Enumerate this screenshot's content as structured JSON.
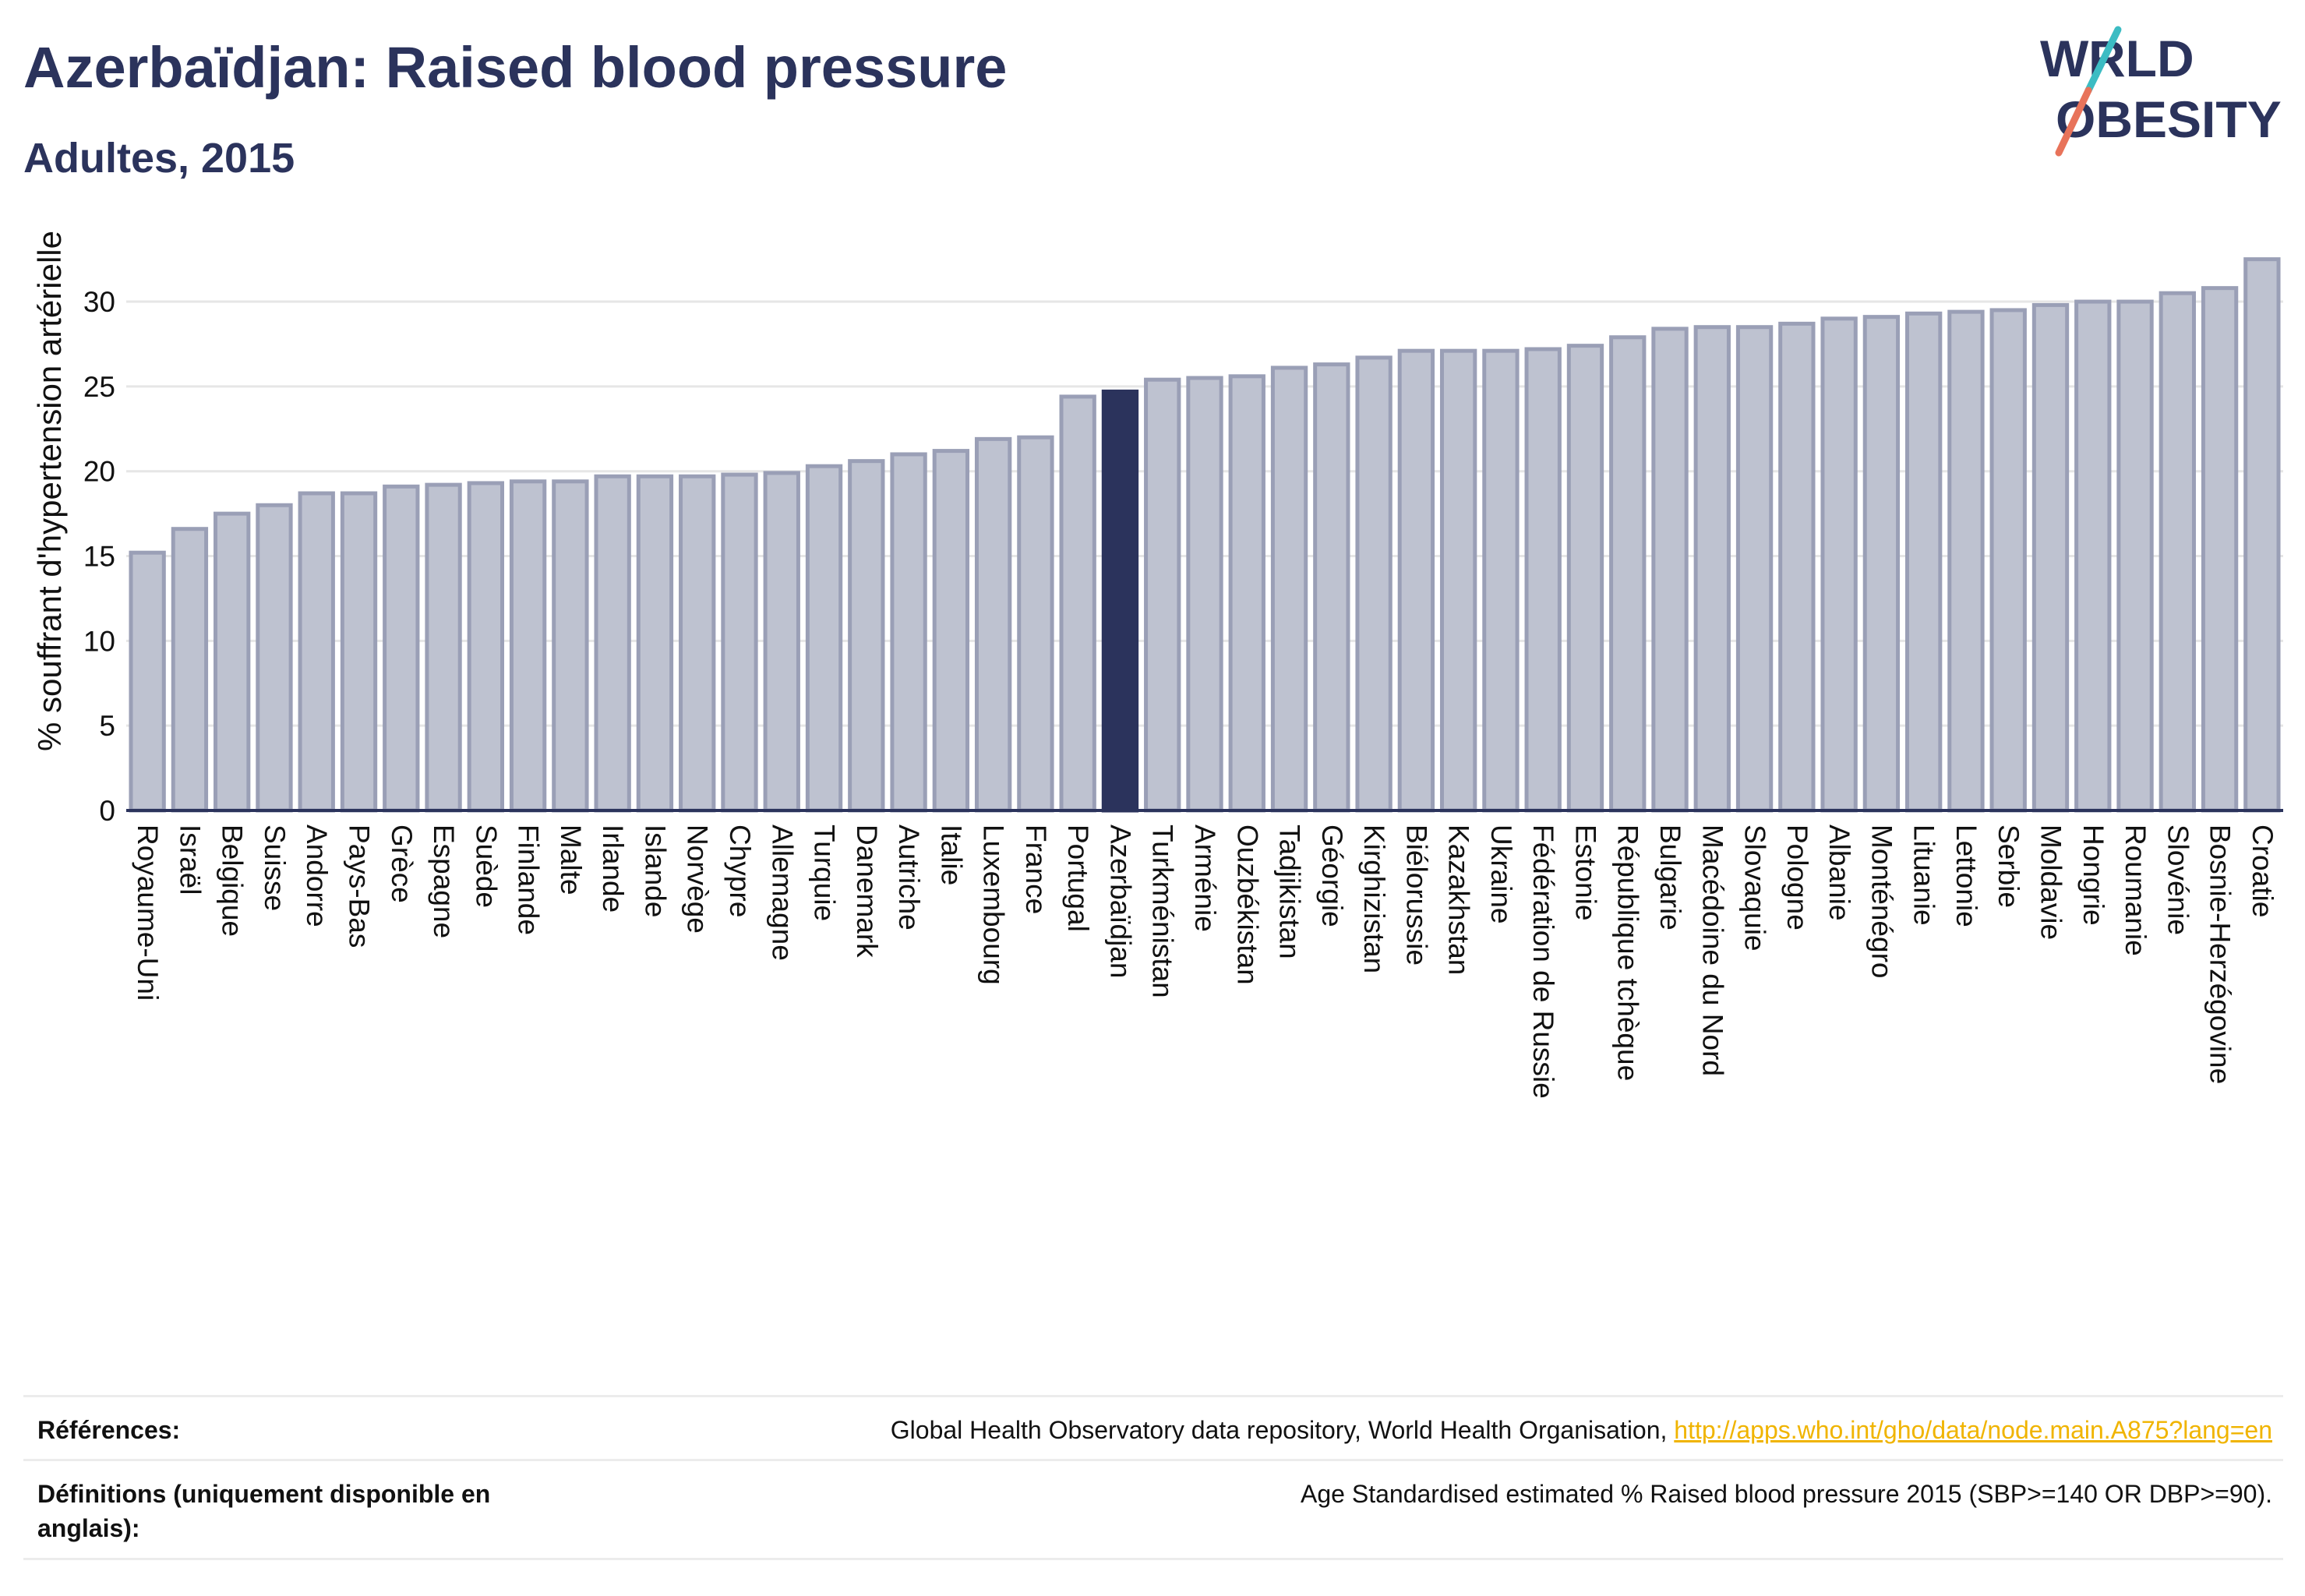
{
  "header": {
    "title": "Azerbaïdjan: Raised blood pressure",
    "subtitle": "Adultes, 2015",
    "logo_text": "WORLD OBESITY"
  },
  "colors": {
    "bar": "#bec2d0",
    "bar_stroke": "#9a9fb6",
    "highlight": "#2b335c",
    "grid": "#e6e6e6",
    "link": "#f0b400"
  },
  "chart_data": {
    "type": "bar",
    "ylabel": "% souffrant d'hypertension artérielle",
    "xlabel": "",
    "ylim": [
      0,
      34
    ],
    "yticks": [
      0,
      5,
      10,
      15,
      20,
      25,
      30
    ],
    "grid": true,
    "highlight": "Azerbaïdjan",
    "categories": [
      "Royaume-Uni",
      "Israël",
      "Belgique",
      "Suisse",
      "Andorre",
      "Pays-Bas",
      "Grèce",
      "Espagne",
      "Suède",
      "Finlande",
      "Malte",
      "Irlande",
      "Islande",
      "Norvège",
      "Chypre",
      "Allemagne",
      "Turquie",
      "Danemark",
      "Autriche",
      "Italie",
      "Luxembourg",
      "France",
      "Portugal",
      "Azerbaïdjan",
      "Turkménistan",
      "Arménie",
      "Ouzbékistan",
      "Tadjikistan",
      "Géorgie",
      "Kirghizistan",
      "Biélorussie",
      "Kazakhstan",
      "Ukraine",
      "Fédération de Russie",
      "Estonie",
      "République tchèque",
      "Bulgarie",
      "Macédoine du Nord",
      "Slovaquie",
      "Pologne",
      "Albanie",
      "Monténégro",
      "Lituanie",
      "Lettonie",
      "Serbie",
      "Moldavie",
      "Hongrie",
      "Roumanie",
      "Slovénie",
      "Bosnie-Herzégovine",
      "Croatie"
    ],
    "values": [
      15.2,
      16.6,
      17.5,
      18.0,
      18.7,
      18.7,
      19.1,
      19.2,
      19.3,
      19.4,
      19.4,
      19.7,
      19.7,
      19.7,
      19.8,
      19.9,
      20.3,
      20.6,
      21.0,
      21.2,
      21.9,
      22.0,
      24.4,
      24.7,
      25.4,
      25.5,
      25.6,
      26.1,
      26.3,
      26.7,
      27.1,
      27.1,
      27.1,
      27.2,
      27.4,
      27.9,
      28.4,
      28.5,
      28.5,
      28.7,
      29.0,
      29.1,
      29.3,
      29.4,
      29.5,
      29.8,
      30.0,
      30.0,
      30.5,
      30.8,
      32.5
    ]
  },
  "footer": {
    "references_label": "Références:",
    "references_text": "Global Health Observatory data repository, World Health Organisation,",
    "references_link": "http://apps.who.int/gho/data/node.main.A875?lang=en",
    "definitions_label": "Définitions (uniquement disponible en anglais):",
    "definitions_text": "Age Standardised estimated % Raised blood pressure 2015 (SBP>=140 OR DBP>=90)."
  }
}
